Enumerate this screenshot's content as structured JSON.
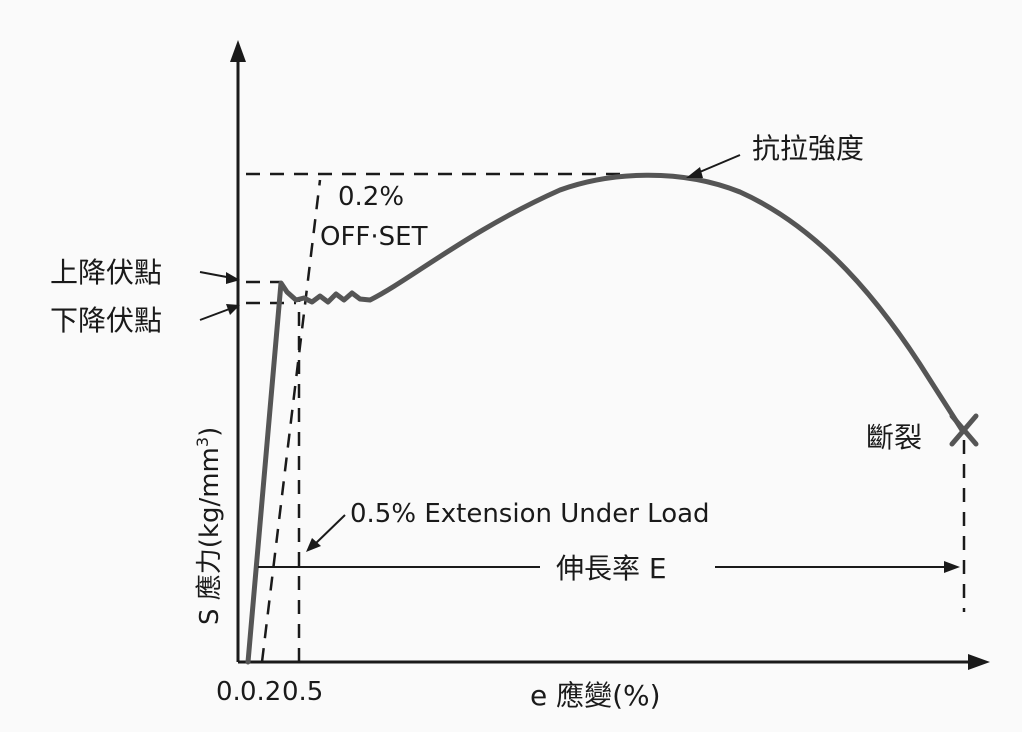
{
  "labels": {
    "tensile_strength": "抗拉強度",
    "offset_value": "0.2%",
    "offset_text": "OFF·SET",
    "upper_yield": "上降伏點",
    "lower_yield": "下降伏點",
    "fracture": "斷裂",
    "eul": "0.5% Extension Under Load",
    "elongation": "伸長率 E",
    "y_axis": "S 應力(kg/mm",
    "y_axis_sup": "3",
    "y_axis_close": ")",
    "x_axis": "e 應變(%)",
    "x_tick_02": "0.2",
    "x_tick_05": "0.5",
    "x_tick_0": "0."
  }
}
